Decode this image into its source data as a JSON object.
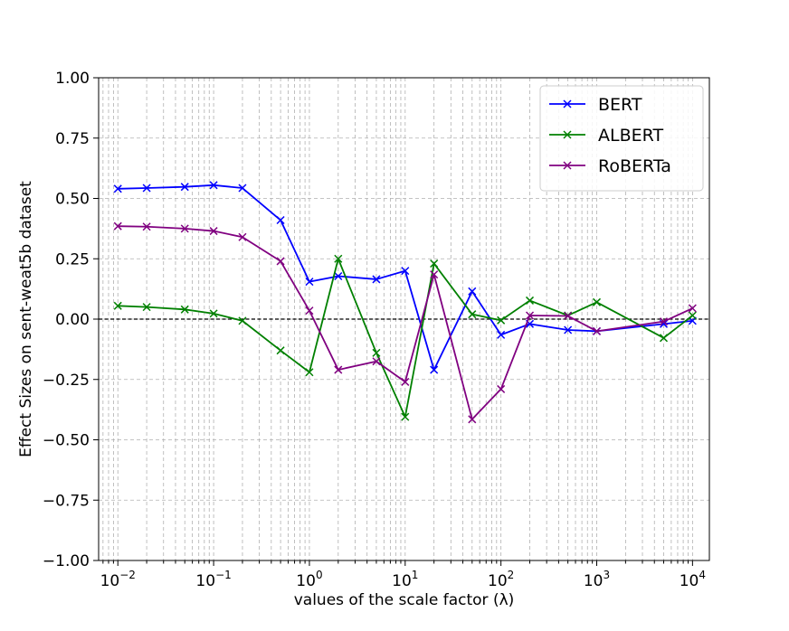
{
  "chart_data": {
    "type": "line",
    "title": "",
    "xlabel": "values of the scale factor (λ)",
    "ylabel": "Effect Sizes on sent-weat5b dataset",
    "xscale": "log",
    "xlim": [
      0.0063,
      15000
    ],
    "ylim": [
      -1.0,
      1.0
    ],
    "grid": true,
    "grid_which": "both",
    "legend_position": "top-right",
    "reference_line": {
      "y": 0.0,
      "style": "dashed",
      "color": "#000000"
    },
    "yticks": [
      -1.0,
      -0.75,
      -0.5,
      -0.25,
      0.0,
      0.25,
      0.5,
      0.75,
      1.0
    ],
    "ytick_labels": [
      "−1.00",
      "−0.75",
      "−0.50",
      "−0.25",
      "0.00",
      "0.25",
      "0.50",
      "0.75",
      "1.00"
    ],
    "xticks": [
      {
        "value": 0.01,
        "base": "10",
        "exp": "−2"
      },
      {
        "value": 0.1,
        "base": "10",
        "exp": "−1"
      },
      {
        "value": 1,
        "base": "10",
        "exp": "0"
      },
      {
        "value": 10,
        "base": "10",
        "exp": "1"
      },
      {
        "value": 100,
        "base": "10",
        "exp": "2"
      },
      {
        "value": 1000,
        "base": "10",
        "exp": "3"
      },
      {
        "value": 10000,
        "base": "10",
        "exp": "4"
      }
    ],
    "x": [
      0.01,
      0.02,
      0.05,
      0.1,
      0.2,
      0.5,
      1,
      2,
      5,
      10,
      20,
      50,
      100,
      200,
      500,
      1000,
      5000,
      10000
    ],
    "series": [
      {
        "name": "BERT",
        "color": "#0000ff",
        "marker": "x",
        "values": [
          0.54,
          0.543,
          0.548,
          0.555,
          0.543,
          0.41,
          0.155,
          0.178,
          0.165,
          0.2,
          -0.21,
          0.115,
          -0.065,
          -0.02,
          -0.045,
          -0.05,
          -0.02,
          -0.007
        ]
      },
      {
        "name": "ALBERT",
        "color": "#008000",
        "marker": "x",
        "values": [
          0.055,
          0.05,
          0.04,
          0.023,
          -0.007,
          -0.13,
          -0.22,
          0.25,
          -0.14,
          -0.405,
          0.23,
          0.02,
          -0.005,
          0.077,
          0.015,
          0.07,
          -0.078,
          0.015
        ]
      },
      {
        "name": "RoBERTa",
        "color": "#800080",
        "marker": "x",
        "values": [
          0.385,
          0.383,
          0.375,
          0.365,
          0.34,
          0.24,
          0.035,
          -0.21,
          -0.175,
          -0.26,
          0.185,
          -0.415,
          -0.29,
          0.015,
          0.013,
          -0.05,
          -0.01,
          0.045
        ]
      }
    ]
  }
}
